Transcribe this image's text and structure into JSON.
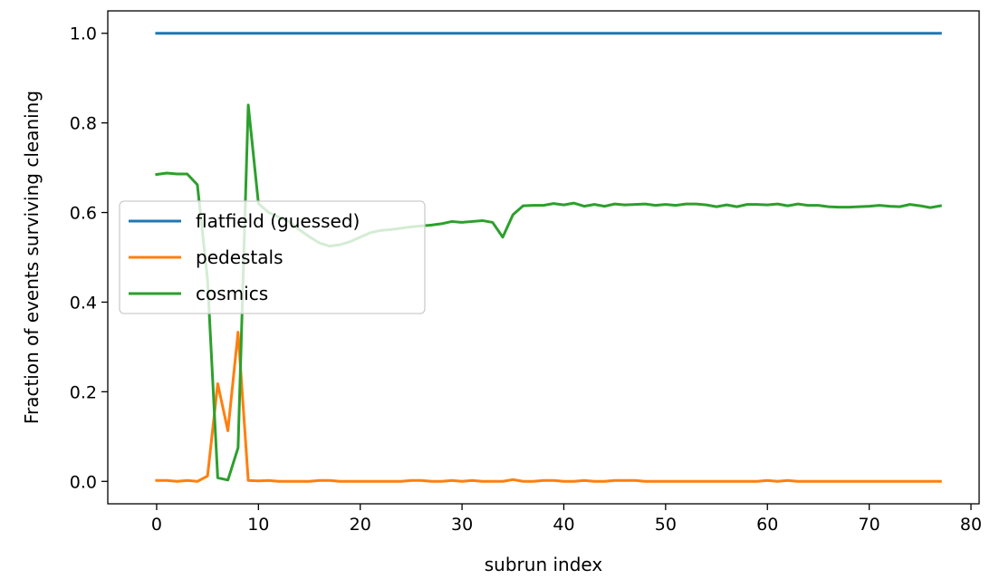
{
  "chart_data": {
    "type": "line",
    "title": "",
    "xlabel": "subrun index",
    "ylabel": "Fraction of events surviving cleaning",
    "xlim": [
      -4.8,
      80.8
    ],
    "ylim": [
      -0.05,
      1.05
    ],
    "xticks": [
      0,
      10,
      20,
      30,
      40,
      50,
      60,
      70,
      80
    ],
    "yticks": [
      0.0,
      0.2,
      0.4,
      0.6,
      0.8,
      1.0
    ],
    "xtick_labels": [
      "0",
      "10",
      "20",
      "30",
      "40",
      "50",
      "60",
      "70",
      "80"
    ],
    "ytick_labels": [
      "0.0",
      "0.2",
      "0.4",
      "0.6",
      "0.8",
      "1.0"
    ],
    "grid": false,
    "legend_position": "center-left",
    "series": [
      {
        "name": "flatfield (guessed)",
        "color": "#1f77b4",
        "x": [
          0,
          77
        ],
        "y": [
          1.0,
          1.0
        ]
      },
      {
        "name": "pedestals",
        "color": "#ff7f0e",
        "x": [
          0,
          1,
          2,
          3,
          4,
          5,
          6,
          7,
          8,
          9,
          10,
          11,
          12,
          13,
          14,
          15,
          16,
          17,
          18,
          19,
          20,
          21,
          22,
          23,
          24,
          25,
          26,
          27,
          28,
          29,
          30,
          31,
          32,
          33,
          34,
          35,
          36,
          37,
          38,
          39,
          40,
          41,
          42,
          43,
          44,
          45,
          46,
          47,
          48,
          49,
          50,
          51,
          52,
          53,
          54,
          55,
          56,
          57,
          58,
          59,
          60,
          61,
          62,
          63,
          64,
          65,
          66,
          67,
          68,
          69,
          70,
          71,
          72,
          73,
          74,
          75,
          76,
          77
        ],
        "y": [
          0.002,
          0.002,
          0.0,
          0.002,
          0.0,
          0.012,
          0.218,
          0.113,
          0.333,
          0.002,
          0.001,
          0.002,
          0.0,
          0.0,
          0.0,
          0.0,
          0.002,
          0.002,
          0.0,
          0.0,
          0.0,
          0.0,
          0.0,
          0.0,
          0.0,
          0.002,
          0.002,
          0.0,
          0.0,
          0.002,
          0.0,
          0.002,
          0.0,
          0.0,
          0.0,
          0.004,
          0.0,
          0.0,
          0.002,
          0.002,
          0.0,
          0.0,
          0.002,
          0.0,
          0.0,
          0.002,
          0.002,
          0.002,
          0.0,
          0.0,
          0.0,
          0.0,
          0.0,
          0.0,
          0.0,
          0.0,
          0.0,
          0.0,
          0.0,
          0.0,
          0.002,
          0.0,
          0.002,
          0.0,
          0.0,
          0.0,
          0.0,
          0.0,
          0.0,
          0.0,
          0.0,
          0.0,
          0.0,
          0.0,
          0.0,
          0.0,
          0.0,
          0.0
        ]
      },
      {
        "name": "cosmics",
        "color": "#2ca02c",
        "x": [
          0,
          1,
          2,
          3,
          4,
          5,
          6,
          7,
          8,
          9,
          10,
          11,
          12,
          13,
          14,
          15,
          16,
          17,
          18,
          19,
          20,
          21,
          22,
          23,
          24,
          25,
          26,
          27,
          28,
          29,
          30,
          31,
          32,
          33,
          34,
          35,
          36,
          37,
          38,
          39,
          40,
          41,
          42,
          43,
          44,
          45,
          46,
          47,
          48,
          49,
          50,
          51,
          52,
          53,
          54,
          55,
          56,
          57,
          58,
          59,
          60,
          61,
          62,
          63,
          64,
          65,
          66,
          67,
          68,
          69,
          70,
          71,
          72,
          73,
          74,
          75,
          76,
          77
        ],
        "y": [
          0.685,
          0.688,
          0.686,
          0.686,
          0.662,
          0.45,
          0.008,
          0.003,
          0.075,
          0.84,
          0.62,
          0.6,
          0.59,
          0.58,
          0.562,
          0.546,
          0.532,
          0.525,
          0.528,
          0.535,
          0.545,
          0.555,
          0.56,
          0.562,
          0.565,
          0.568,
          0.57,
          0.572,
          0.575,
          0.58,
          0.578,
          0.58,
          0.582,
          0.578,
          0.545,
          0.595,
          0.615,
          0.616,
          0.616,
          0.62,
          0.617,
          0.621,
          0.614,
          0.618,
          0.614,
          0.619,
          0.617,
          0.618,
          0.619,
          0.616,
          0.618,
          0.616,
          0.619,
          0.619,
          0.617,
          0.613,
          0.617,
          0.613,
          0.618,
          0.618,
          0.617,
          0.619,
          0.615,
          0.619,
          0.616,
          0.616,
          0.613,
          0.612,
          0.612,
          0.613,
          0.614,
          0.616,
          0.614,
          0.613,
          0.618,
          0.615,
          0.611,
          0.615
        ]
      }
    ]
  }
}
